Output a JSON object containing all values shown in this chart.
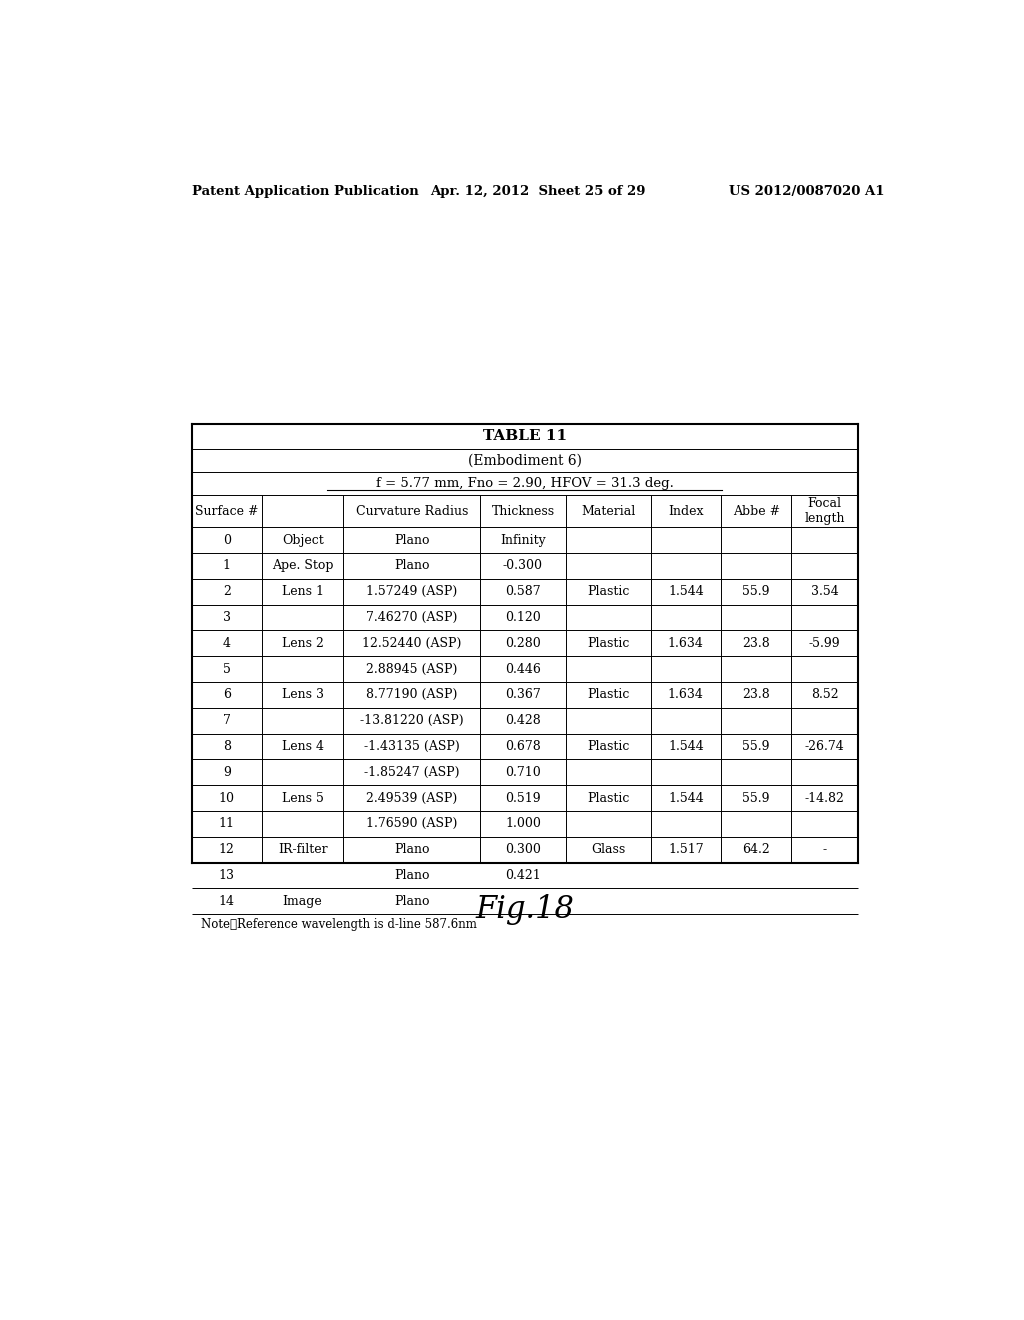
{
  "header_left": "Patent Application Publication",
  "header_center": "Apr. 12, 2012  Sheet 25 of 29",
  "header_right": "US 2012/0087020 A1",
  "table_title": "TABLE 11",
  "table_subtitle": "(Embodiment 6)",
  "table_params": "f = 5.77 mm, Fno = 2.90, HFOV = 31.3 deg.",
  "col_headers": [
    "Surface #",
    "",
    "Curvature Radius",
    "Thickness",
    "Material",
    "Index",
    "Abbe #",
    "Focal\nlength"
  ],
  "rows": [
    [
      "0",
      "Object",
      "Plano",
      "Infinity",
      "",
      "",
      "",
      ""
    ],
    [
      "1",
      "Ape. Stop",
      "Plano",
      "-0.300",
      "",
      "",
      "",
      ""
    ],
    [
      "2",
      "Lens 1",
      "1.57249 (ASP)",
      "0.587",
      "Plastic",
      "1.544",
      "55.9",
      "3.54"
    ],
    [
      "3",
      "",
      "7.46270 (ASP)",
      "0.120",
      "",
      "",
      "",
      ""
    ],
    [
      "4",
      "Lens 2",
      "12.52440 (ASP)",
      "0.280",
      "Plastic",
      "1.634",
      "23.8",
      "-5.99"
    ],
    [
      "5",
      "",
      "2.88945 (ASP)",
      "0.446",
      "",
      "",
      "",
      ""
    ],
    [
      "6",
      "Lens 3",
      "8.77190 (ASP)",
      "0.367",
      "Plastic",
      "1.634",
      "23.8",
      "8.52"
    ],
    [
      "7",
      "",
      "-13.81220 (ASP)",
      "0.428",
      "",
      "",
      "",
      ""
    ],
    [
      "8",
      "Lens 4",
      "-1.43135 (ASP)",
      "0.678",
      "Plastic",
      "1.544",
      "55.9",
      "-26.74"
    ],
    [
      "9",
      "",
      "-1.85247 (ASP)",
      "0.710",
      "",
      "",
      "",
      ""
    ],
    [
      "10",
      "Lens 5",
      "2.49539 (ASP)",
      "0.519",
      "Plastic",
      "1.544",
      "55.9",
      "-14.82"
    ],
    [
      "11",
      "",
      "1.76590 (ASP)",
      "1.000",
      "",
      "",
      "",
      ""
    ],
    [
      "12",
      "IR-filter",
      "Plano",
      "0.300",
      "Glass",
      "1.517",
      "64.2",
      "-"
    ],
    [
      "13",
      "",
      "Plano",
      "0.421",
      "",
      "",
      "",
      ""
    ],
    [
      "14",
      "Image",
      "Plano",
      "-",
      "",
      "",
      "",
      ""
    ]
  ],
  "note": "Note：Reference wavelength is d-line 587.6nm",
  "figure_label": "Fig.18",
  "bg_color": "#ffffff",
  "text_color": "#000000",
  "table_line_color": "#000000"
}
